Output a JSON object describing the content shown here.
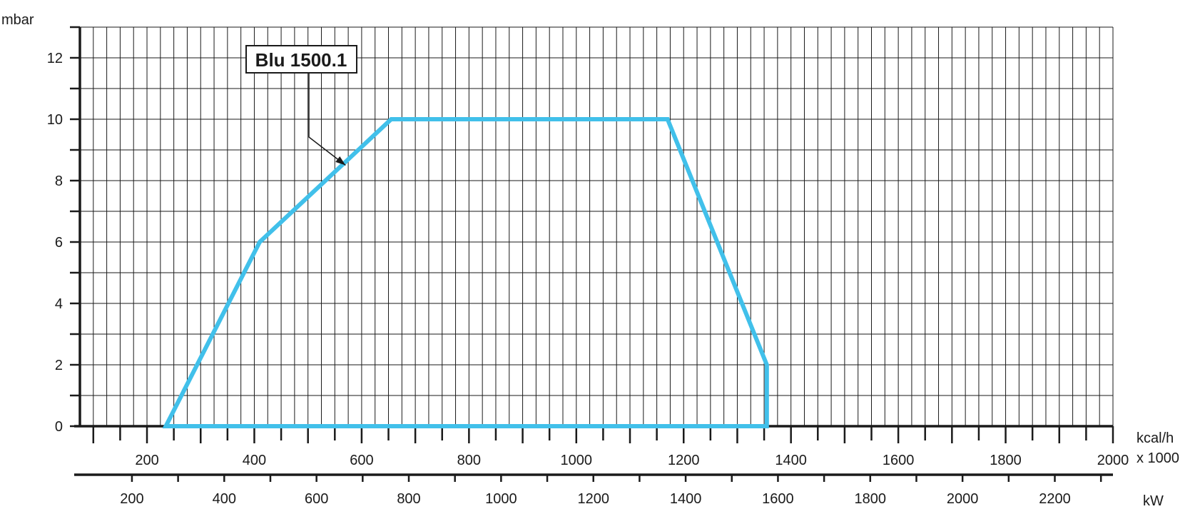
{
  "chart_data": {
    "type": "area",
    "title": "",
    "ylabel": "mbar",
    "ylim": [
      0,
      13
    ],
    "yticks": [
      0,
      2,
      4,
      6,
      8,
      10,
      12
    ],
    "grid": true,
    "x_axis_kcal": {
      "label_line1": "kcal/h",
      "label_line2": "x 1000",
      "lim": [
        75,
        2000
      ],
      "ticks": [
        200,
        400,
        600,
        800,
        1000,
        1200,
        1400,
        1600,
        1800,
        2000
      ]
    },
    "x_axis_kw": {
      "label": "kW",
      "ticks": [
        200,
        400,
        600,
        800,
        1000,
        1200,
        1400,
        1600,
        1800,
        2000,
        2200
      ]
    },
    "series": [
      {
        "name": "Blu 1500.1",
        "color": "#41c0ea",
        "x": [
          235,
          410,
          655,
          1170,
          1355,
          1355,
          235
        ],
        "y": [
          0,
          6,
          10,
          10,
          2,
          0,
          0
        ]
      }
    ],
    "annotation": {
      "text": "Blu 1500.1",
      "arrow_target": [
        570,
        8.5
      ]
    }
  }
}
